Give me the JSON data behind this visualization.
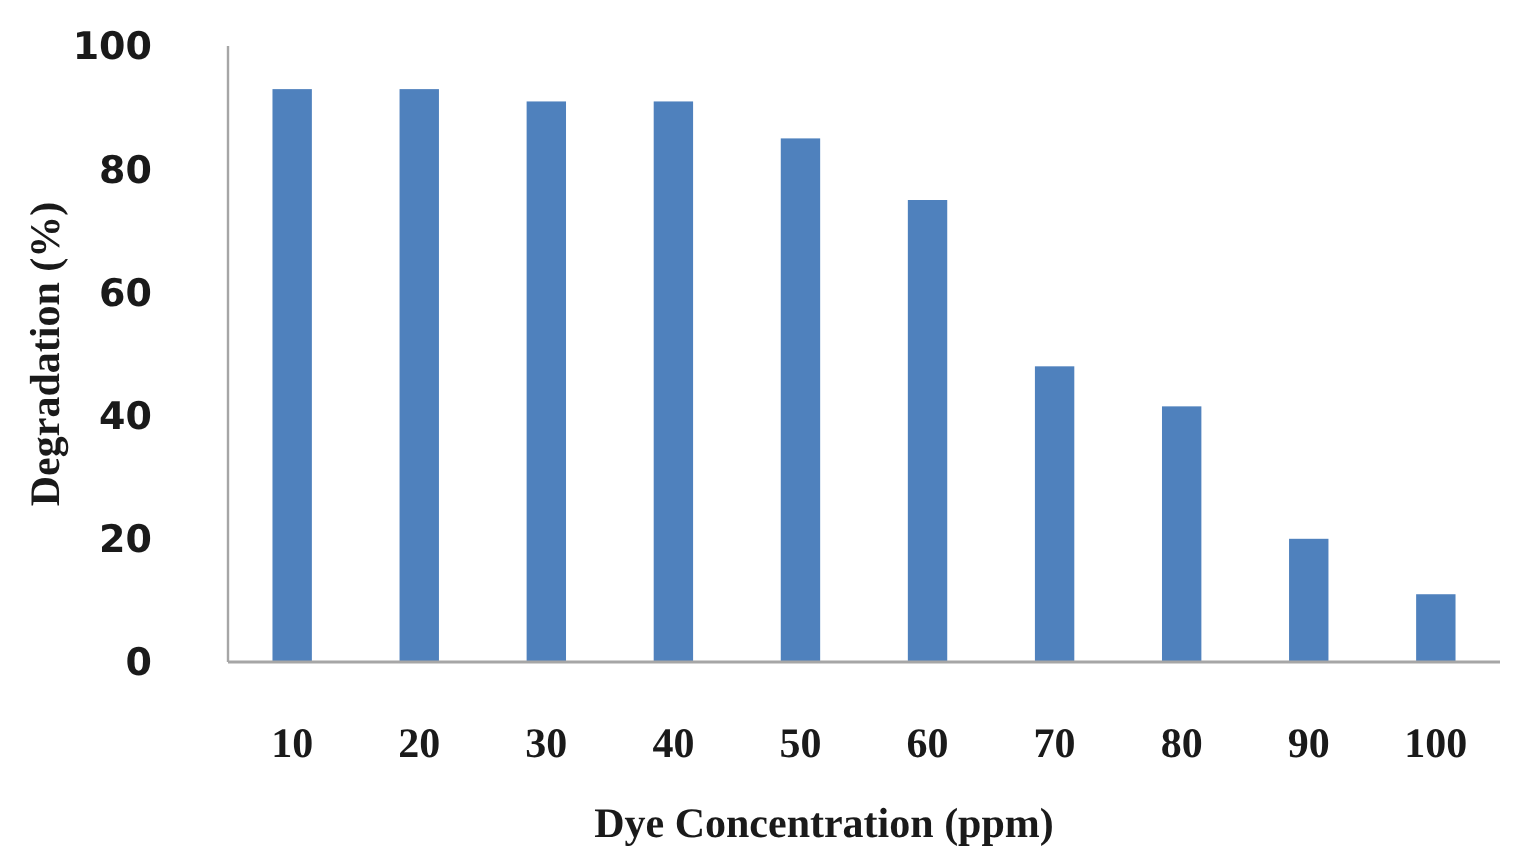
{
  "chart_data": {
    "type": "bar",
    "xlabel": "Dye Concentration (ppm)",
    "ylabel": "Degradation (%)",
    "categories": [
      "10",
      "20",
      "30",
      "40",
      "50",
      "60",
      "70",
      "80",
      "90",
      "100"
    ],
    "values": [
      93,
      93,
      91,
      91,
      85,
      75,
      48,
      41.5,
      20,
      11
    ],
    "color": "#4f81bd",
    "ylim": [
      0,
      100
    ],
    "yticks": [
      0,
      20,
      40,
      60,
      80,
      100
    ],
    "grid": false
  }
}
